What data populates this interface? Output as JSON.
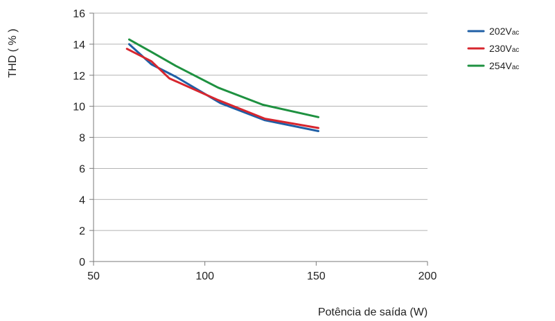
{
  "chart_data": {
    "type": "line",
    "title": "",
    "xlabel": "Potência de saída (W)",
    "ylabel": "THD ( % )",
    "xlim": [
      50,
      200
    ],
    "ylim": [
      0,
      16
    ],
    "xticks": [
      50,
      100,
      150,
      200
    ],
    "yticks": [
      0,
      2,
      4,
      6,
      8,
      10,
      12,
      14,
      16
    ],
    "grid": "horizontal",
    "legend_position": "top-right",
    "series": [
      {
        "name": "202Vac",
        "label_main": "202V",
        "label_sub": "ac",
        "color": "#1f5fa6",
        "x": [
          66,
          76,
          87,
          107,
          127,
          151
        ],
        "y": [
          14.0,
          12.7,
          11.9,
          10.2,
          9.1,
          8.4
        ]
      },
      {
        "name": "230Vac",
        "label_main": "230V",
        "label_sub": "ac",
        "color": "#d7262e",
        "x": [
          65,
          76,
          84,
          106,
          127,
          151
        ],
        "y": [
          13.7,
          12.9,
          11.8,
          10.4,
          9.2,
          8.6
        ]
      },
      {
        "name": "254Vac",
        "label_main": "254V",
        "label_sub": "ac",
        "color": "#1e9140",
        "x": [
          66,
          76,
          87,
          106,
          126,
          151
        ],
        "y": [
          14.3,
          13.5,
          12.6,
          11.2,
          10.1,
          9.3
        ]
      }
    ]
  }
}
